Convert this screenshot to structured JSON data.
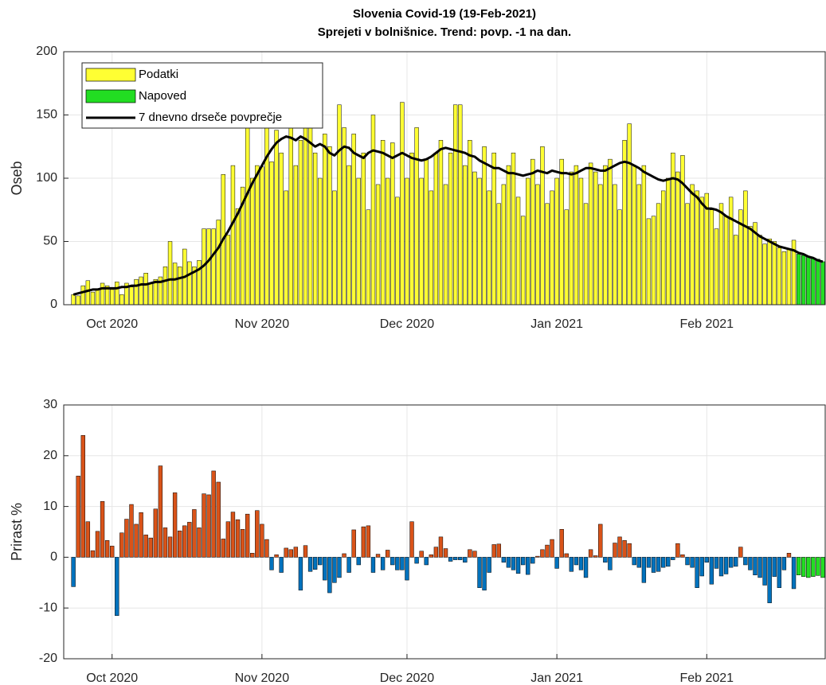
{
  "chart_data": [
    {
      "type": "bar",
      "title": "Slovenia Covid-19 (19-Feb-2021)",
      "subtitle": "Sprejeti v bolnišnice. Trend: povp. -1 na dan.",
      "ylabel": "Oseb",
      "x": [
        0,
        1,
        2,
        3,
        4,
        5,
        6,
        7,
        8,
        9,
        10,
        11,
        12,
        13,
        14,
        15,
        16,
        17,
        18,
        19,
        20,
        21,
        22,
        23,
        24,
        25,
        26,
        27,
        28,
        29,
        30,
        31,
        32,
        33,
        34,
        35,
        36,
        37,
        38,
        39,
        40,
        41,
        42,
        43,
        44,
        45,
        46,
        47,
        48,
        49,
        50,
        51,
        52,
        53,
        54,
        55,
        56,
        57,
        58,
        59,
        60,
        61,
        62,
        63,
        64,
        65,
        66,
        67,
        68,
        69,
        70,
        71,
        72,
        73,
        74,
        75,
        76,
        77,
        78,
        79,
        80,
        81,
        82,
        83,
        84,
        85,
        86,
        87,
        88,
        89,
        90,
        91,
        92,
        93,
        94,
        95,
        96,
        97,
        98,
        99,
        100,
        101,
        102,
        103,
        104,
        105,
        106,
        107,
        108,
        109,
        110,
        111,
        112,
        113,
        114,
        115,
        116,
        117,
        118,
        119,
        120,
        121,
        122,
        123,
        124,
        125,
        126,
        127,
        128,
        129,
        130,
        131,
        132,
        133,
        134,
        135,
        136,
        137,
        138,
        139,
        140,
        141,
        142,
        143,
        144,
        145,
        146,
        147,
        148,
        149,
        150,
        151,
        152,
        153,
        154,
        155
      ],
      "xlim": [
        -2,
        155.5
      ],
      "xticks": [
        {
          "value": 8,
          "label": "Oct 2020"
        },
        {
          "value": 39,
          "label": "Nov 2020"
        },
        {
          "value": 69,
          "label": "Dec 2020"
        },
        {
          "value": 100,
          "label": "Jan 2021"
        },
        {
          "value": 131,
          "label": "Feb 2021"
        }
      ],
      "ylim": [
        0,
        200
      ],
      "yticks": [
        0,
        50,
        100,
        150,
        200
      ],
      "grid": true,
      "legend": "upper left",
      "series": [
        {
          "name": "Podatki",
          "type": "bar",
          "color": "#ffff33",
          "values": [
            8,
            7,
            15,
            19,
            10,
            12,
            17,
            15,
            12,
            18,
            8,
            17,
            14,
            20,
            22,
            25,
            17,
            20,
            22,
            30,
            50,
            33,
            30,
            44,
            34,
            30,
            35,
            60,
            60,
            60,
            67,
            103,
            55,
            110,
            76,
            93,
            140,
            100,
            110,
            109,
            140,
            113,
            138,
            120,
            90,
            147,
            110,
            130,
            145,
            155,
            120,
            100,
            135,
            125,
            90,
            158,
            140,
            110,
            135,
            100,
            120,
            75,
            150,
            95,
            130,
            100,
            128,
            85,
            160,
            100,
            120,
            140,
            100,
            115,
            90,
            120,
            130,
            95,
            120,
            158,
            158,
            110,
            130,
            105,
            100,
            125,
            90,
            120,
            80,
            95,
            110,
            120,
            85,
            70,
            100,
            115,
            95,
            125,
            80,
            90,
            100,
            115,
            75,
            105,
            110,
            100,
            80,
            112,
            105,
            95,
            110,
            115,
            95,
            75,
            130,
            143,
            110,
            95,
            110,
            68,
            70,
            80,
            90,
            100,
            120,
            105,
            118,
            80,
            95,
            90,
            85,
            88,
            75,
            60,
            80,
            70,
            85,
            55,
            75,
            90,
            62,
            65,
            55,
            48,
            52,
            50,
            45,
            42,
            44,
            51,
            null,
            null,
            null,
            null,
            null,
            null
          ]
        },
        {
          "name": "Napoved",
          "type": "bar",
          "color": "#22dd22",
          "values": [
            null,
            null,
            null,
            null,
            null,
            null,
            null,
            null,
            null,
            null,
            null,
            null,
            null,
            null,
            null,
            null,
            null,
            null,
            null,
            null,
            null,
            null,
            null,
            null,
            null,
            null,
            null,
            null,
            null,
            null,
            null,
            null,
            null,
            null,
            null,
            null,
            null,
            null,
            null,
            null,
            null,
            null,
            null,
            null,
            null,
            null,
            null,
            null,
            null,
            null,
            null,
            null,
            null,
            null,
            null,
            null,
            null,
            null,
            null,
            null,
            null,
            null,
            null,
            null,
            null,
            null,
            null,
            null,
            null,
            null,
            null,
            null,
            null,
            null,
            null,
            null,
            null,
            null,
            null,
            null,
            null,
            null,
            null,
            null,
            null,
            null,
            null,
            null,
            null,
            null,
            null,
            null,
            null,
            null,
            null,
            null,
            null,
            null,
            null,
            null,
            null,
            null,
            null,
            null,
            null,
            null,
            null,
            null,
            null,
            null,
            null,
            null,
            null,
            null,
            null,
            null,
            null,
            null,
            null,
            null,
            null,
            null,
            null,
            null,
            null,
            null,
            null,
            null,
            null,
            null,
            null,
            null,
            null,
            null,
            null,
            null,
            null,
            null,
            null,
            null,
            null,
            null,
            null,
            null,
            null,
            null,
            null,
            null,
            null,
            null,
            40,
            39,
            38,
            37,
            36,
            34
          ]
        },
        {
          "name": "7 dnevno drseče povprečje",
          "type": "line",
          "color": "#000000",
          "values": [
            8,
            9,
            10,
            11,
            12,
            12,
            13,
            13,
            13,
            13,
            14,
            14,
            15,
            15,
            16,
            16,
            17,
            18,
            18,
            19,
            20,
            20,
            21,
            22,
            24,
            26,
            28,
            31,
            35,
            40,
            45,
            52,
            58,
            65,
            72,
            80,
            88,
            96,
            103,
            110,
            117,
            123,
            128,
            131,
            133,
            132,
            130,
            133,
            131,
            128,
            125,
            127,
            125,
            120,
            118,
            122,
            125,
            124,
            120,
            118,
            116,
            120,
            122,
            121,
            120,
            118,
            116,
            118,
            120,
            118,
            116,
            115,
            114,
            115,
            117,
            120,
            123,
            124,
            123,
            122,
            121,
            120,
            118,
            117,
            114,
            112,
            110,
            108,
            108,
            106,
            104,
            104,
            103,
            102,
            103,
            104,
            106,
            105,
            104,
            106,
            105,
            104,
            104,
            103,
            104,
            106,
            108,
            108,
            107,
            106,
            106,
            108,
            110,
            112,
            113,
            112,
            110,
            108,
            105,
            103,
            101,
            99,
            98,
            99,
            100,
            99,
            96,
            92,
            88,
            85,
            80,
            76,
            76,
            75,
            73,
            70,
            68,
            66,
            64,
            62,
            60,
            57,
            54,
            52,
            50,
            48,
            46,
            45,
            44,
            43,
            41,
            40,
            38,
            37,
            35,
            34
          ]
        }
      ]
    },
    {
      "type": "bar",
      "ylabel": "Prirast %",
      "x": [
        0,
        1,
        2,
        3,
        4,
        5,
        6,
        7,
        8,
        9,
        10,
        11,
        12,
        13,
        14,
        15,
        16,
        17,
        18,
        19,
        20,
        21,
        22,
        23,
        24,
        25,
        26,
        27,
        28,
        29,
        30,
        31,
        32,
        33,
        34,
        35,
        36,
        37,
        38,
        39,
        40,
        41,
        42,
        43,
        44,
        45,
        46,
        47,
        48,
        49,
        50,
        51,
        52,
        53,
        54,
        55,
        56,
        57,
        58,
        59,
        60,
        61,
        62,
        63,
        64,
        65,
        66,
        67,
        68,
        69,
        70,
        71,
        72,
        73,
        74,
        75,
        76,
        77,
        78,
        79,
        80,
        81,
        82,
        83,
        84,
        85,
        86,
        87,
        88,
        89,
        90,
        91,
        92,
        93,
        94,
        95,
        96,
        97,
        98,
        99,
        100,
        101,
        102,
        103,
        104,
        105,
        106,
        107,
        108,
        109,
        110,
        111,
        112,
        113,
        114,
        115,
        116,
        117,
        118,
        119,
        120,
        121,
        122,
        123,
        124,
        125,
        126,
        127,
        128,
        129,
        130,
        131,
        132,
        133,
        134,
        135,
        136,
        137,
        138,
        139,
        140,
        141,
        142,
        143,
        144,
        145,
        146,
        147,
        148,
        149,
        150,
        151,
        152,
        153,
        154,
        155
      ],
      "xlim": [
        -2,
        155.5
      ],
      "xticks": [
        {
          "value": 8,
          "label": "Oct 2020"
        },
        {
          "value": 39,
          "label": "Nov 2020"
        },
        {
          "value": 69,
          "label": "Dec 2020"
        },
        {
          "value": 100,
          "label": "Jan 2021"
        },
        {
          "value": 131,
          "label": "Feb 2021"
        }
      ],
      "ylim": [
        -20,
        30
      ],
      "yticks": [
        -20,
        -10,
        0,
        10,
        20,
        30
      ],
      "grid": true,
      "series": [
        {
          "type": "bar",
          "color": "#d95319",
          "negative_color": "#0072bd",
          "values": [
            -5.8,
            16,
            24,
            7,
            1.3,
            5.1,
            11,
            3.3,
            2.2,
            -11.5,
            4.8,
            7.5,
            10.4,
            6.5,
            8.8,
            4.4,
            3.8,
            9.5,
            18,
            5.8,
            4,
            12.7,
            5.2,
            6.2,
            6.9,
            9.4,
            5.8,
            12.5,
            12.3,
            17,
            14.8,
            3.6,
            7,
            8.9,
            7.4,
            5.5,
            8.5,
            0.8,
            9.2,
            6.5,
            3.5,
            -2.5,
            0.5,
            -3,
            1.8,
            1.5,
            2,
            -6.5,
            2.3,
            -2.8,
            -2.4,
            -1.5,
            -4.5,
            -7,
            -5,
            -4,
            0.7,
            -3,
            5.4,
            -1.5,
            6,
            6.2,
            -3,
            0.6,
            -2.5,
            1.4,
            -1.5,
            -2.5,
            -2.5,
            -4.5,
            7,
            -1.2,
            1.2,
            -1.5,
            0.5,
            2,
            4,
            1.7,
            -0.8,
            -0.5,
            -0.5,
            -1,
            1.5,
            1.2,
            -6,
            -6.5,
            -3,
            2.5,
            2.6,
            -1,
            -2,
            -2.5,
            -3.2,
            -1.5,
            -3.4,
            -1.2,
            0.2,
            1.5,
            2.4,
            3.5,
            -2.2,
            5.5,
            0.7,
            -2.8,
            -1.5,
            -2.5,
            -4,
            1.5,
            0.3,
            6.5,
            -1,
            -2.5,
            2.8,
            4,
            3.3,
            2.7,
            -1.5,
            -2,
            -5,
            -2,
            -3,
            -2.8,
            -2,
            -1.8,
            -0.5,
            2.7,
            0.5,
            -1.5,
            -2,
            -6,
            -3.7,
            -1,
            -5.3,
            -2.2,
            -3.7,
            -3.3,
            -2,
            -1.8,
            2,
            -1.5,
            -2.5,
            -3.5,
            -4,
            -5.5,
            -9,
            -3.8,
            -6,
            -2.5,
            0.8,
            -6.2,
            null,
            null,
            null,
            null,
            null,
            null
          ]
        },
        {
          "type": "bar",
          "color": "#22dd22",
          "values": [
            null,
            null,
            null,
            null,
            null,
            null,
            null,
            null,
            null,
            null,
            null,
            null,
            null,
            null,
            null,
            null,
            null,
            null,
            null,
            null,
            null,
            null,
            null,
            null,
            null,
            null,
            null,
            null,
            null,
            null,
            null,
            null,
            null,
            null,
            null,
            null,
            null,
            null,
            null,
            null,
            null,
            null,
            null,
            null,
            null,
            null,
            null,
            null,
            null,
            null,
            null,
            null,
            null,
            null,
            null,
            null,
            null,
            null,
            null,
            null,
            null,
            null,
            null,
            null,
            null,
            null,
            null,
            null,
            null,
            null,
            null,
            null,
            null,
            null,
            null,
            null,
            null,
            null,
            null,
            null,
            null,
            null,
            null,
            null,
            null,
            null,
            null,
            null,
            null,
            null,
            null,
            null,
            null,
            null,
            null,
            null,
            null,
            null,
            null,
            null,
            null,
            null,
            null,
            null,
            null,
            null,
            null,
            null,
            null,
            null,
            null,
            null,
            null,
            null,
            null,
            null,
            null,
            null,
            null,
            null,
            null,
            null,
            null,
            null,
            null,
            null,
            null,
            null,
            null,
            null,
            null,
            null,
            null,
            null,
            null,
            null,
            null,
            null,
            null,
            null,
            null,
            null,
            null,
            null,
            null,
            null,
            null,
            null,
            null,
            null,
            -3.5,
            -3.8,
            -4,
            -3.8,
            -3.6,
            -4
          ]
        }
      ]
    }
  ]
}
